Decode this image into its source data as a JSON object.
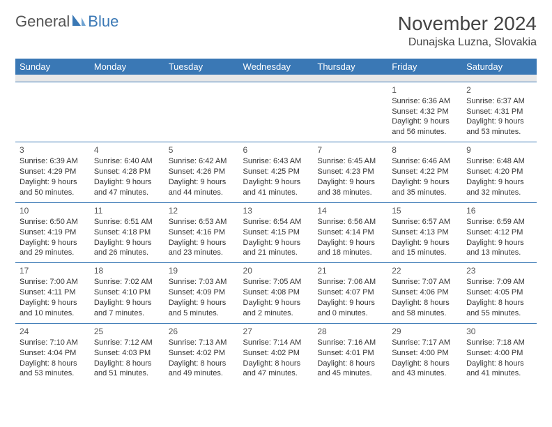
{
  "logo": {
    "general": "General",
    "blue": "Blue"
  },
  "title": "November 2024",
  "location": "Dunajska Luzna, Slovakia",
  "colors": {
    "accent": "#3a78b5",
    "header_text": "#ffffff",
    "body_text": "#333333",
    "bg": "#ffffff",
    "spacer": "#e8e8e8"
  },
  "days_of_week": [
    "Sunday",
    "Monday",
    "Tuesday",
    "Wednesday",
    "Thursday",
    "Friday",
    "Saturday"
  ],
  "weeks": [
    [
      null,
      null,
      null,
      null,
      null,
      {
        "n": "1",
        "sr": "Sunrise: 6:36 AM",
        "ss": "Sunset: 4:32 PM",
        "dl1": "Daylight: 9 hours",
        "dl2": "and 56 minutes."
      },
      {
        "n": "2",
        "sr": "Sunrise: 6:37 AM",
        "ss": "Sunset: 4:31 PM",
        "dl1": "Daylight: 9 hours",
        "dl2": "and 53 minutes."
      }
    ],
    [
      {
        "n": "3",
        "sr": "Sunrise: 6:39 AM",
        "ss": "Sunset: 4:29 PM",
        "dl1": "Daylight: 9 hours",
        "dl2": "and 50 minutes."
      },
      {
        "n": "4",
        "sr": "Sunrise: 6:40 AM",
        "ss": "Sunset: 4:28 PM",
        "dl1": "Daylight: 9 hours",
        "dl2": "and 47 minutes."
      },
      {
        "n": "5",
        "sr": "Sunrise: 6:42 AM",
        "ss": "Sunset: 4:26 PM",
        "dl1": "Daylight: 9 hours",
        "dl2": "and 44 minutes."
      },
      {
        "n": "6",
        "sr": "Sunrise: 6:43 AM",
        "ss": "Sunset: 4:25 PM",
        "dl1": "Daylight: 9 hours",
        "dl2": "and 41 minutes."
      },
      {
        "n": "7",
        "sr": "Sunrise: 6:45 AM",
        "ss": "Sunset: 4:23 PM",
        "dl1": "Daylight: 9 hours",
        "dl2": "and 38 minutes."
      },
      {
        "n": "8",
        "sr": "Sunrise: 6:46 AM",
        "ss": "Sunset: 4:22 PM",
        "dl1": "Daylight: 9 hours",
        "dl2": "and 35 minutes."
      },
      {
        "n": "9",
        "sr": "Sunrise: 6:48 AM",
        "ss": "Sunset: 4:20 PM",
        "dl1": "Daylight: 9 hours",
        "dl2": "and 32 minutes."
      }
    ],
    [
      {
        "n": "10",
        "sr": "Sunrise: 6:50 AM",
        "ss": "Sunset: 4:19 PM",
        "dl1": "Daylight: 9 hours",
        "dl2": "and 29 minutes."
      },
      {
        "n": "11",
        "sr": "Sunrise: 6:51 AM",
        "ss": "Sunset: 4:18 PM",
        "dl1": "Daylight: 9 hours",
        "dl2": "and 26 minutes."
      },
      {
        "n": "12",
        "sr": "Sunrise: 6:53 AM",
        "ss": "Sunset: 4:16 PM",
        "dl1": "Daylight: 9 hours",
        "dl2": "and 23 minutes."
      },
      {
        "n": "13",
        "sr": "Sunrise: 6:54 AM",
        "ss": "Sunset: 4:15 PM",
        "dl1": "Daylight: 9 hours",
        "dl2": "and 21 minutes."
      },
      {
        "n": "14",
        "sr": "Sunrise: 6:56 AM",
        "ss": "Sunset: 4:14 PM",
        "dl1": "Daylight: 9 hours",
        "dl2": "and 18 minutes."
      },
      {
        "n": "15",
        "sr": "Sunrise: 6:57 AM",
        "ss": "Sunset: 4:13 PM",
        "dl1": "Daylight: 9 hours",
        "dl2": "and 15 minutes."
      },
      {
        "n": "16",
        "sr": "Sunrise: 6:59 AM",
        "ss": "Sunset: 4:12 PM",
        "dl1": "Daylight: 9 hours",
        "dl2": "and 13 minutes."
      }
    ],
    [
      {
        "n": "17",
        "sr": "Sunrise: 7:00 AM",
        "ss": "Sunset: 4:11 PM",
        "dl1": "Daylight: 9 hours",
        "dl2": "and 10 minutes."
      },
      {
        "n": "18",
        "sr": "Sunrise: 7:02 AM",
        "ss": "Sunset: 4:10 PM",
        "dl1": "Daylight: 9 hours",
        "dl2": "and 7 minutes."
      },
      {
        "n": "19",
        "sr": "Sunrise: 7:03 AM",
        "ss": "Sunset: 4:09 PM",
        "dl1": "Daylight: 9 hours",
        "dl2": "and 5 minutes."
      },
      {
        "n": "20",
        "sr": "Sunrise: 7:05 AM",
        "ss": "Sunset: 4:08 PM",
        "dl1": "Daylight: 9 hours",
        "dl2": "and 2 minutes."
      },
      {
        "n": "21",
        "sr": "Sunrise: 7:06 AM",
        "ss": "Sunset: 4:07 PM",
        "dl1": "Daylight: 9 hours",
        "dl2": "and 0 minutes."
      },
      {
        "n": "22",
        "sr": "Sunrise: 7:07 AM",
        "ss": "Sunset: 4:06 PM",
        "dl1": "Daylight: 8 hours",
        "dl2": "and 58 minutes."
      },
      {
        "n": "23",
        "sr": "Sunrise: 7:09 AM",
        "ss": "Sunset: 4:05 PM",
        "dl1": "Daylight: 8 hours",
        "dl2": "and 55 minutes."
      }
    ],
    [
      {
        "n": "24",
        "sr": "Sunrise: 7:10 AM",
        "ss": "Sunset: 4:04 PM",
        "dl1": "Daylight: 8 hours",
        "dl2": "and 53 minutes."
      },
      {
        "n": "25",
        "sr": "Sunrise: 7:12 AM",
        "ss": "Sunset: 4:03 PM",
        "dl1": "Daylight: 8 hours",
        "dl2": "and 51 minutes."
      },
      {
        "n": "26",
        "sr": "Sunrise: 7:13 AM",
        "ss": "Sunset: 4:02 PM",
        "dl1": "Daylight: 8 hours",
        "dl2": "and 49 minutes."
      },
      {
        "n": "27",
        "sr": "Sunrise: 7:14 AM",
        "ss": "Sunset: 4:02 PM",
        "dl1": "Daylight: 8 hours",
        "dl2": "and 47 minutes."
      },
      {
        "n": "28",
        "sr": "Sunrise: 7:16 AM",
        "ss": "Sunset: 4:01 PM",
        "dl1": "Daylight: 8 hours",
        "dl2": "and 45 minutes."
      },
      {
        "n": "29",
        "sr": "Sunrise: 7:17 AM",
        "ss": "Sunset: 4:00 PM",
        "dl1": "Daylight: 8 hours",
        "dl2": "and 43 minutes."
      },
      {
        "n": "30",
        "sr": "Sunrise: 7:18 AM",
        "ss": "Sunset: 4:00 PM",
        "dl1": "Daylight: 8 hours",
        "dl2": "and 41 minutes."
      }
    ]
  ]
}
